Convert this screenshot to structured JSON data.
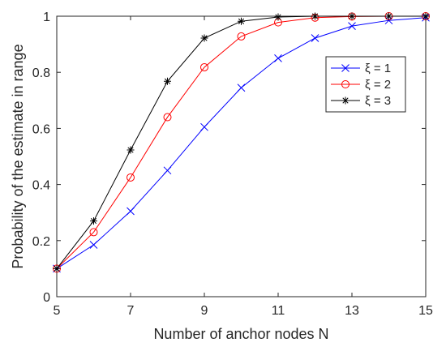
{
  "chart_data": {
    "type": "line",
    "xlabel": "Number of anchor nodes N",
    "ylabel": "Probability of the estimate in range",
    "xlim": [
      5,
      15
    ],
    "ylim": [
      0,
      1
    ],
    "x_ticks": [
      "5",
      "7",
      "9",
      "11",
      "13",
      "15"
    ],
    "y_ticks": [
      "0",
      "0.2",
      "0.4",
      "0.6",
      "0.8",
      "1"
    ],
    "grid": true,
    "legend_position": "top-right",
    "x": [
      5,
      6,
      7,
      8,
      9,
      10,
      11,
      12,
      13,
      14,
      15
    ],
    "series": [
      {
        "name": "ξ = 1",
        "color": "#0000ff",
        "marker": "x",
        "values": [
          0.1,
          0.185,
          0.305,
          0.45,
          0.605,
          0.745,
          0.85,
          0.922,
          0.965,
          0.985,
          0.995
        ]
      },
      {
        "name": "ξ = 2",
        "color": "#ff0000",
        "marker": "circle",
        "values": [
          0.1,
          0.23,
          0.425,
          0.64,
          0.818,
          0.928,
          0.978,
          0.995,
          0.999,
          1.0,
          1.0
        ]
      },
      {
        "name": "ξ = 3",
        "color": "#000000",
        "marker": "asterisk",
        "values": [
          0.1,
          0.27,
          0.523,
          0.768,
          0.922,
          0.982,
          0.997,
          1.0,
          1.0,
          1.0,
          1.0
        ]
      }
    ]
  }
}
